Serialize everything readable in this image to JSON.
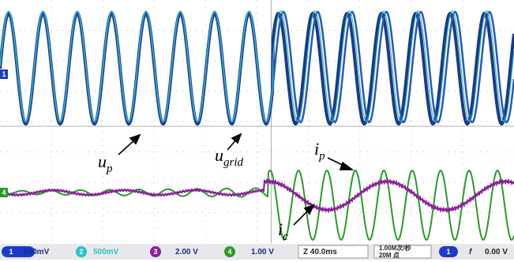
{
  "markers": [
    "1",
    "4"
  ],
  "annotations": [
    {
      "main": "u",
      "sub": "p"
    },
    {
      "main": "u",
      "sub": "grid"
    },
    {
      "main": "i",
      "sub": "p"
    },
    {
      "main": "i",
      "sub": "c"
    }
  ],
  "status_bar": {
    "channels": [
      {
        "channel": "1",
        "value": "500mV"
      },
      {
        "channel": "2",
        "value": "500mV"
      },
      {
        "channel": "3",
        "value": "2.00 V"
      },
      {
        "channel": "4",
        "value": "1.00 V"
      }
    ],
    "timebase": "Z 40.0ms",
    "sample_rate": "1.00M次/秒",
    "record_length": "20M 点",
    "trigger": {
      "channel": "1",
      "slope": "f",
      "level": "0.00 V"
    }
  }
}
